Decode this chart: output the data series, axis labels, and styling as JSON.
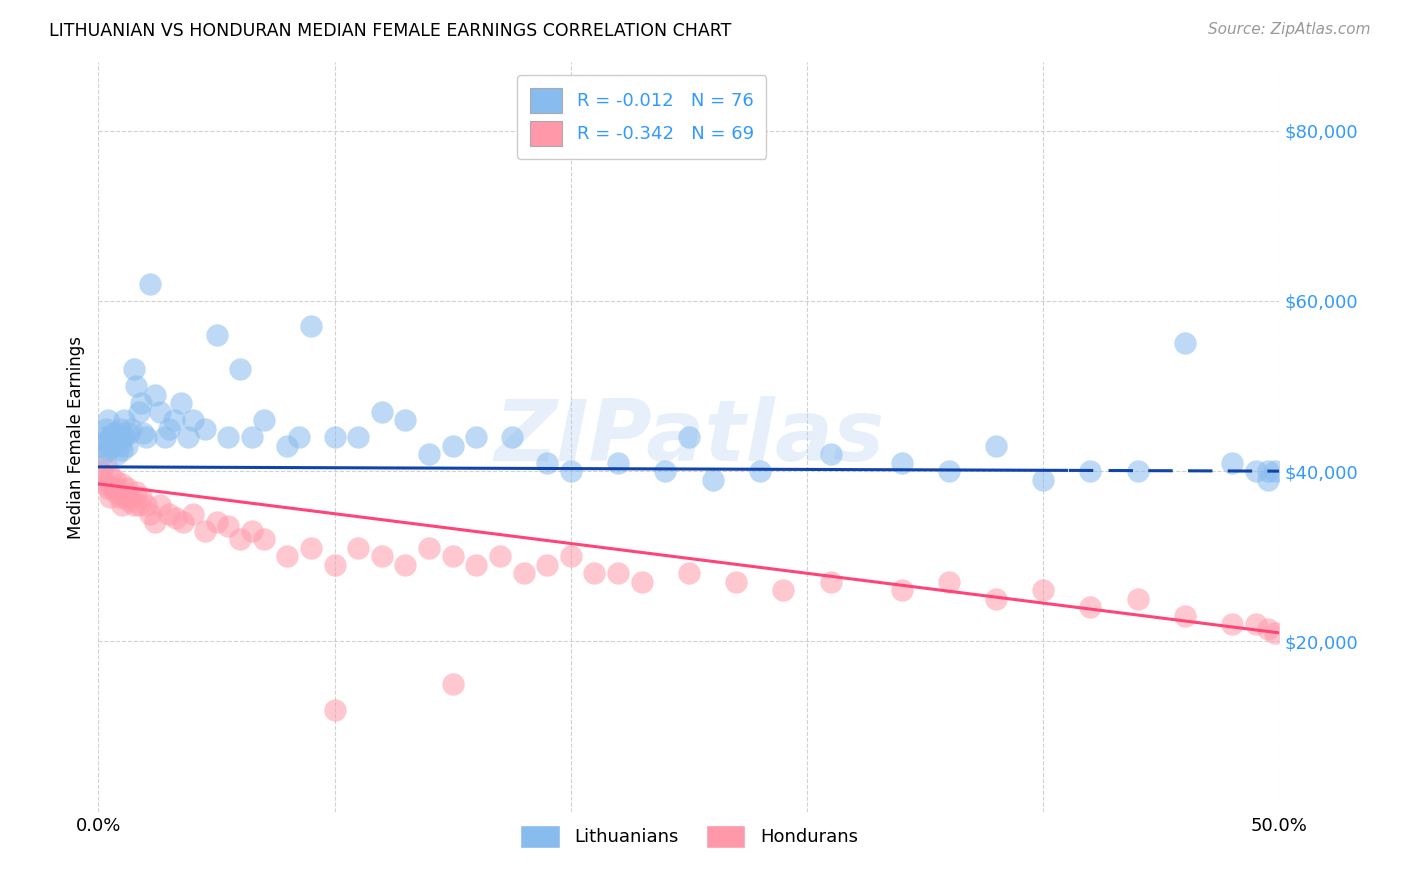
{
  "title": "LITHUANIAN VS HONDURAN MEDIAN FEMALE EARNINGS CORRELATION CHART",
  "source": "Source: ZipAtlas.com",
  "ylabel": "Median Female Earnings",
  "xlim": [
    0.0,
    0.5
  ],
  "ylim": [
    0,
    88000
  ],
  "R_lith": -0.012,
  "N_lith": 76,
  "R_hond": -0.342,
  "N_hond": 69,
  "blue_color": "#88BBEE",
  "pink_color": "#FF99AA",
  "blue_line_color": "#1144AA",
  "pink_line_color": "#FF4477",
  "blue_tick_color": "#3399FF",
  "grid_color": "#CCCCCC",
  "watermark_text": "ZIPatlas",
  "watermark_color": "#AACCEE",
  "legend_labels": [
    "Lithuanians",
    "Hondurans"
  ],
  "lith_x": [
    0.001,
    0.002,
    0.002,
    0.003,
    0.003,
    0.004,
    0.004,
    0.005,
    0.005,
    0.006,
    0.006,
    0.007,
    0.007,
    0.008,
    0.008,
    0.009,
    0.009,
    0.01,
    0.01,
    0.011,
    0.011,
    0.012,
    0.013,
    0.014,
    0.015,
    0.016,
    0.017,
    0.018,
    0.019,
    0.02,
    0.022,
    0.024,
    0.026,
    0.028,
    0.03,
    0.032,
    0.035,
    0.038,
    0.04,
    0.045,
    0.05,
    0.055,
    0.06,
    0.065,
    0.07,
    0.08,
    0.085,
    0.09,
    0.1,
    0.11,
    0.12,
    0.13,
    0.14,
    0.15,
    0.16,
    0.175,
    0.19,
    0.2,
    0.22,
    0.24,
    0.26,
    0.28,
    0.31,
    0.34,
    0.36,
    0.38,
    0.4,
    0.42,
    0.44,
    0.46,
    0.48,
    0.49,
    0.495,
    0.495,
    0.498,
    0.25
  ],
  "lith_y": [
    43000,
    44000,
    42000,
    45000,
    43500,
    46000,
    42500,
    44000,
    43000,
    44500,
    43000,
    43500,
    44000,
    42000,
    44500,
    43000,
    45000,
    44000,
    42500,
    44000,
    46000,
    43000,
    44500,
    45000,
    52000,
    50000,
    47000,
    48000,
    44500,
    44000,
    62000,
    49000,
    47000,
    44000,
    45000,
    46000,
    48000,
    44000,
    46000,
    45000,
    56000,
    44000,
    52000,
    44000,
    46000,
    43000,
    44000,
    57000,
    44000,
    44000,
    47000,
    46000,
    42000,
    43000,
    44000,
    44000,
    41000,
    40000,
    41000,
    40000,
    39000,
    40000,
    42000,
    41000,
    40000,
    43000,
    39000,
    40000,
    40000,
    55000,
    41000,
    40000,
    39000,
    40000,
    40000,
    44000
  ],
  "hond_x": [
    0.001,
    0.002,
    0.003,
    0.003,
    0.004,
    0.005,
    0.005,
    0.006,
    0.007,
    0.007,
    0.008,
    0.009,
    0.01,
    0.01,
    0.011,
    0.012,
    0.013,
    0.014,
    0.015,
    0.016,
    0.017,
    0.018,
    0.02,
    0.022,
    0.024,
    0.026,
    0.03,
    0.033,
    0.036,
    0.04,
    0.045,
    0.05,
    0.055,
    0.06,
    0.065,
    0.07,
    0.08,
    0.09,
    0.1,
    0.11,
    0.12,
    0.13,
    0.14,
    0.15,
    0.16,
    0.17,
    0.18,
    0.19,
    0.2,
    0.21,
    0.22,
    0.23,
    0.25,
    0.27,
    0.29,
    0.31,
    0.34,
    0.36,
    0.38,
    0.4,
    0.42,
    0.44,
    0.46,
    0.48,
    0.49,
    0.495,
    0.498,
    0.1,
    0.15
  ],
  "hond_y": [
    40000,
    39000,
    38500,
    41000,
    38000,
    39500,
    37000,
    38000,
    37500,
    39000,
    38000,
    37000,
    38500,
    36000,
    37000,
    38000,
    36500,
    37000,
    36000,
    37500,
    36000,
    37000,
    36000,
    35000,
    34000,
    36000,
    35000,
    34500,
    34000,
    35000,
    33000,
    34000,
    33500,
    32000,
    33000,
    32000,
    30000,
    31000,
    29000,
    31000,
    30000,
    29000,
    31000,
    30000,
    29000,
    30000,
    28000,
    29000,
    30000,
    28000,
    28000,
    27000,
    28000,
    27000,
    26000,
    27000,
    26000,
    27000,
    25000,
    26000,
    24000,
    25000,
    23000,
    22000,
    22000,
    21500,
    21000,
    12000,
    15000
  ]
}
